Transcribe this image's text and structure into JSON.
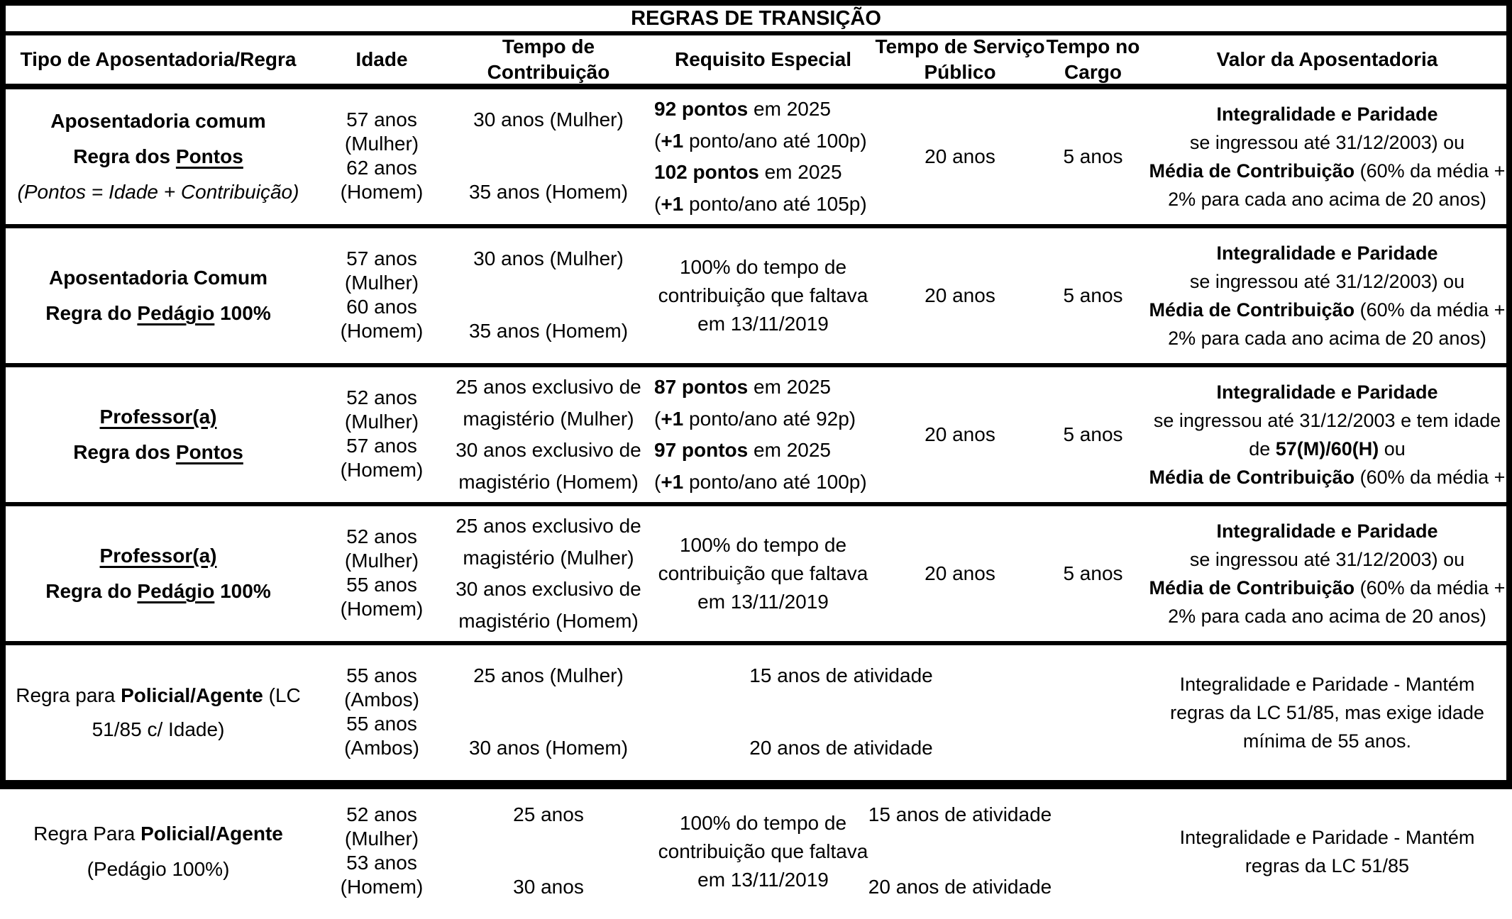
{
  "title": "REGRAS DE TRANSIÇÃO",
  "headers": {
    "tipo": "Tipo de Aposentadoria/Regra",
    "idade": "Idade",
    "contribuicao": {
      "l1": "Tempo de",
      "l2": "Contribuição"
    },
    "requisito": "Requisito Especial",
    "servico": {
      "l1": "Tempo de Serviço",
      "l2": "Público"
    },
    "cargo": {
      "l1": "Tempo no",
      "l2": "Cargo"
    },
    "valor": "Valor da Aposentadoria"
  },
  "rows": [
    {
      "tipo": {
        "l1": "Aposentadoria comum",
        "l2a": "Regra dos ",
        "l2b": "Pontos",
        "l3": "(Pontos = Idade + Contribuição)"
      },
      "idade": {
        "f": "57 anos (Mulher)",
        "m": "62 anos (Homem)"
      },
      "contribuicao": {
        "f": "30 anos (Mulher)",
        "m": "35 anos (Homem)"
      },
      "requisito": {
        "l1a": "92 pontos",
        "l1b": " em 2025",
        "l2a": "(",
        "l2b": "+1",
        "l2c": " ponto/ano até 100p)",
        "l3a": "102 pontos",
        "l3b": " em 2025",
        "l4a": "(",
        "l4b": "+1",
        "l4c": " ponto/ano até 105p)"
      },
      "servico": "20 anos",
      "cargo": "5 anos",
      "valor": {
        "l1": "Integralidade e Paridade",
        "l2": "se ingressou até 31/12/2003) ou",
        "l3a": "Média de Contribuição",
        "l3b": " (60% da média +",
        "l4": "2% para cada ano acima de 20 anos)"
      }
    },
    {
      "tipo": {
        "l1": "Aposentadoria Comum",
        "l2a": "Regra do ",
        "l2b": "Pedágio",
        "l2c": " 100%"
      },
      "idade": {
        "f": "57 anos (Mulher)",
        "m": "60 anos (Homem)"
      },
      "contribuicao": {
        "f": "30 anos (Mulher)",
        "m": "35 anos (Homem)"
      },
      "requisito": {
        "l1": "100% do tempo de",
        "l2": "contribuição que faltava",
        "l3": "em 13/11/2019"
      },
      "servico": "20 anos",
      "cargo": "5 anos",
      "valor": {
        "l1": "Integralidade e Paridade",
        "l2": "se ingressou até 31/12/2003) ou",
        "l3a": "Média de Contribuição",
        "l3b": " (60% da média +",
        "l4": "2% para cada ano acima de 20 anos)"
      }
    },
    {
      "tipo": {
        "l1": "Professor(a)",
        "l2a": "Regra dos ",
        "l2b": "Pontos"
      },
      "idade": {
        "f": "52 anos (Mulher)",
        "m": "57 anos (Homem)"
      },
      "contribuicao": {
        "f1": "25 anos exclusivo de",
        "f2": "magistério (Mulher)",
        "m1": "30 anos exclusivo de",
        "m2": "magistério (Homem)"
      },
      "requisito": {
        "l1a": "87 pontos",
        "l1b": " em 2025",
        "l2a": "(",
        "l2b": "+1",
        "l2c": " ponto/ano até 92p)",
        "l3a": "97 pontos",
        "l3b": " em 2025",
        "l4a": "(",
        "l4b": "+1",
        "l4c": " ponto/ano até 100p)"
      },
      "servico": "20 anos",
      "cargo": "5 anos",
      "valor": {
        "l1": "Integralidade e Paridade",
        "l2": "se ingressou até 31/12/2003 e tem idade",
        "l3a": "de ",
        "l3b": "57(M)/60(H)",
        "l3c": "  ou",
        "l4a": "Média de Contribuição",
        "l4b": " (60% da média +"
      }
    },
    {
      "tipo": {
        "l1": "Professor(a)",
        "l2a": "Regra do ",
        "l2b": "Pedágio",
        "l2c": " 100%"
      },
      "idade": {
        "f": "52 anos (Mulher)",
        "m": "55 anos (Homem)"
      },
      "contribuicao": {
        "f1": "25 anos exclusivo de",
        "f2": "magistério (Mulher)",
        "m1": "30 anos exclusivo de",
        "m2": "magistério (Homem)"
      },
      "requisito": {
        "l1": "100% do tempo de",
        "l2": "contribuição que faltava",
        "l3": "em 13/11/2019"
      },
      "servico": "20 anos",
      "cargo": "5 anos",
      "valor": {
        "l1": "Integralidade e Paridade",
        "l2": "se ingressou até 31/12/2003) ou",
        "l3a": "Média de Contribuição",
        "l3b": " (60% da média +",
        "l4": "2% para cada ano acima de 20 anos)"
      }
    },
    {
      "tipo": {
        "l1a": "Regra para ",
        "l1b": "Policial/Agente",
        "l1c": " (LC 51/85 c/ Idade)"
      },
      "idade": {
        "f": "55 anos (Ambos)",
        "m": "55 anos (Ambos)"
      },
      "contribuicao": {
        "f": "25 anos (Mulher)",
        "m": "30 anos (Homem)"
      },
      "atividade": {
        "f": "15 anos de atividade",
        "m": "20 anos de atividade"
      },
      "valor": {
        "text": "Integralidade e Paridade - Mantém regras da LC 51/85, mas exige idade mínima de 55 anos."
      }
    },
    {
      "tipo": {
        "l1a": "Regra Para ",
        "l1b": "Policial/Agente",
        "l2": "(Pedágio 100%)"
      },
      "idade": {
        "f": "52 anos (Mulher)",
        "m": "53 anos (Homem)"
      },
      "contribuicao": {
        "f": "25 anos",
        "m": "30 anos"
      },
      "requisito": {
        "l1": "100% do tempo de",
        "l2": "contribuição que faltava",
        "l3": "em 13/11/2019"
      },
      "atividade": {
        "f": "15 anos de atividade",
        "m": "20 anos de atividade"
      },
      "valor": {
        "text": "Integralidade e Paridade - Mantém regras da LC 51/85"
      }
    }
  ]
}
